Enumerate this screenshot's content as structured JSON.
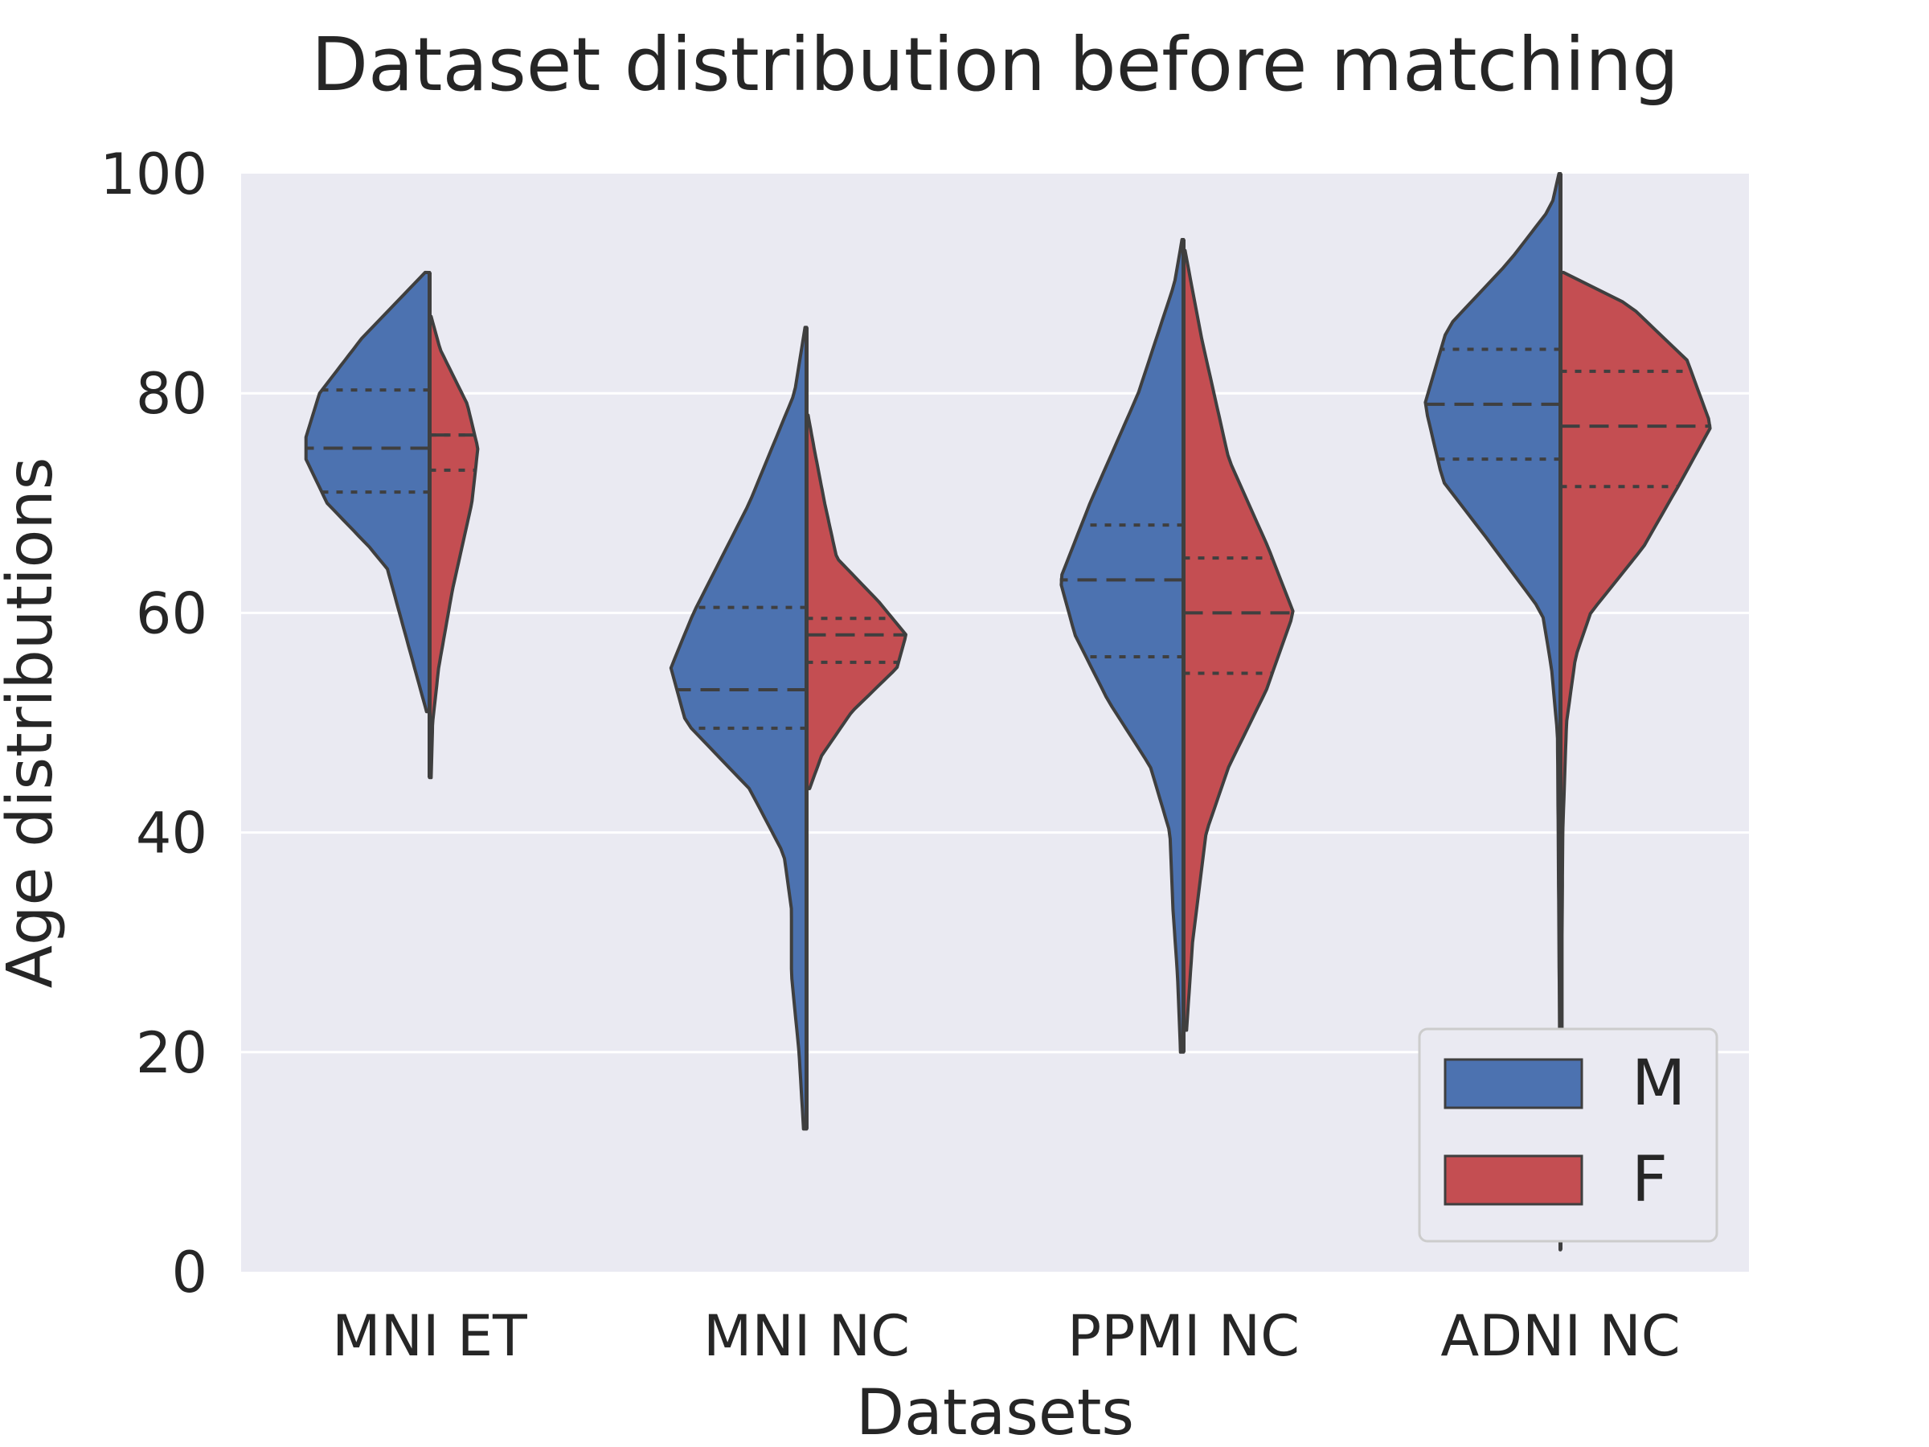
{
  "chart_data": {
    "type": "violin",
    "title": "Dataset distribution before matching",
    "xlabel": "Datasets",
    "ylabel": "Age distributions",
    "ylim": [
      0,
      100
    ],
    "yticks": [
      0,
      20,
      40,
      60,
      80,
      100
    ],
    "categories": [
      "MNI ET",
      "MNI NC",
      "PPMI NC",
      "ADNI NC"
    ],
    "grid": true,
    "split": true,
    "inner": "quartile",
    "legend": {
      "position": "lower-right"
    },
    "colors": {
      "M": "#4c72b0",
      "F": "#c44e52",
      "background": "#eaeaf2",
      "grid": "#ffffff",
      "outline": "#3f3f3f"
    },
    "series": [
      {
        "name": "M",
        "quartiles": [
          [
            71,
            75,
            80.3
          ],
          [
            49.5,
            53,
            60.5
          ],
          [
            56,
            63,
            68
          ],
          [
            74,
            79,
            84
          ]
        ],
        "range": [
          [
            51,
            91
          ],
          [
            13,
            86
          ],
          [
            20,
            94
          ],
          [
            2,
            100
          ]
        ],
        "profiles": [
          [
            [
              51,
              0.02
            ],
            [
              55,
              0.1
            ],
            [
              60,
              0.2
            ],
            [
              64,
              0.28
            ],
            [
              66,
              0.4
            ],
            [
              70,
              0.68
            ],
            [
              74,
              0.82
            ],
            [
              76,
              0.82
            ],
            [
              80,
              0.73
            ],
            [
              85,
              0.45
            ],
            [
              91,
              0.03
            ]
          ],
          [
            [
              13,
              0.02
            ],
            [
              20,
              0.05
            ],
            [
              27,
              0.1
            ],
            [
              33,
              0.1
            ],
            [
              38,
              0.15
            ],
            [
              44,
              0.38
            ],
            [
              50,
              0.8
            ],
            [
              55,
              0.9
            ],
            [
              60,
              0.75
            ],
            [
              70,
              0.38
            ],
            [
              80,
              0.08
            ],
            [
              86,
              0.01
            ]
          ],
          [
            [
              20,
              0.02
            ],
            [
              27,
              0.04
            ],
            [
              33,
              0.07
            ],
            [
              40,
              0.09
            ],
            [
              46,
              0.22
            ],
            [
              52,
              0.5
            ],
            [
              58,
              0.72
            ],
            [
              63,
              0.82
            ],
            [
              70,
              0.62
            ],
            [
              80,
              0.3
            ],
            [
              90,
              0.06
            ],
            [
              94,
              0.01
            ]
          ],
          [
            [
              2,
              0.002
            ],
            [
              20,
              0.005
            ],
            [
              30,
              0.01
            ],
            [
              40,
              0.015
            ],
            [
              49,
              0.02
            ],
            [
              55,
              0.06
            ],
            [
              60,
              0.12
            ],
            [
              67,
              0.5
            ],
            [
              72,
              0.78
            ],
            [
              79,
              0.9
            ],
            [
              86,
              0.75
            ],
            [
              92,
              0.34
            ],
            [
              97,
              0.06
            ],
            [
              100,
              0.01
            ]
          ]
        ]
      },
      {
        "name": "F",
        "quartiles": [
          [
            73,
            76.2,
            76.2
          ],
          [
            55.5,
            58,
            59.5
          ],
          [
            54.5,
            60,
            65
          ],
          [
            71.5,
            77,
            82
          ]
        ],
        "range": [
          [
            45,
            87
          ],
          [
            44,
            78
          ],
          [
            22,
            93
          ],
          [
            20,
            91
          ]
        ],
        "profiles": [
          [
            [
              45,
              0.01
            ],
            [
              50,
              0.02
            ],
            [
              55,
              0.06
            ],
            [
              62,
              0.15
            ],
            [
              70,
              0.28
            ],
            [
              75,
              0.32
            ],
            [
              79,
              0.25
            ],
            [
              84,
              0.07
            ],
            [
              87,
              0.01
            ]
          ],
          [
            [
              44,
              0.02
            ],
            [
              47,
              0.1
            ],
            [
              51,
              0.3
            ],
            [
              55,
              0.6
            ],
            [
              58,
              0.66
            ],
            [
              61,
              0.48
            ],
            [
              65,
              0.2
            ],
            [
              70,
              0.12
            ],
            [
              75,
              0.05
            ],
            [
              78,
              0.01
            ]
          ],
          [
            [
              22,
              0.02
            ],
            [
              30,
              0.06
            ],
            [
              40,
              0.15
            ],
            [
              46,
              0.3
            ],
            [
              53,
              0.55
            ],
            [
              60,
              0.73
            ],
            [
              66,
              0.56
            ],
            [
              74,
              0.3
            ],
            [
              85,
              0.12
            ],
            [
              93,
              0.01
            ]
          ],
          [
            [
              20,
              0.01
            ],
            [
              30,
              0.01
            ],
            [
              40,
              0.015
            ],
            [
              50,
              0.04
            ],
            [
              56,
              0.1
            ],
            [
              60,
              0.2
            ],
            [
              66,
              0.55
            ],
            [
              72,
              0.8
            ],
            [
              77,
              1.0
            ],
            [
              83,
              0.84
            ],
            [
              88,
              0.46
            ],
            [
              91,
              0.02
            ]
          ]
        ]
      }
    ]
  }
}
